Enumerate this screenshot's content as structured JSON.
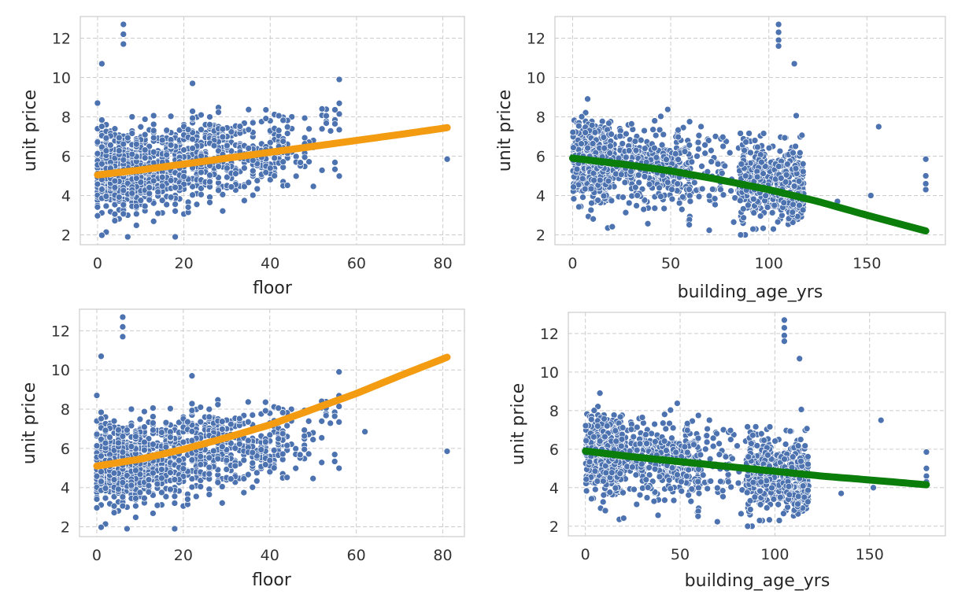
{
  "figure": {
    "layout": "2x2 grid of scatter plots with fitted curves"
  },
  "colors": {
    "points": "#4c72b0",
    "orange_fit": "#f39c12",
    "green_fit": "#0b7d0b",
    "grid": "#cccccc",
    "frame": "#cccccc"
  },
  "chart_data": [
    {
      "type": "scatter",
      "title": "",
      "xlabel": "floor",
      "ylabel": "unit price",
      "xlim": [
        -4,
        85
      ],
      "ylim": [
        1.5,
        13.1
      ],
      "xticks": [
        0,
        20,
        40,
        60,
        80
      ],
      "xtick_labels": [
        "0",
        "20",
        "40",
        "60",
        "80"
      ],
      "yticks": [
        2,
        4,
        6,
        8,
        10,
        12
      ],
      "ytick_labels": [
        "2",
        "4",
        "6",
        "8",
        "10",
        "12"
      ],
      "grid": true,
      "fit_color": "#f39c12",
      "fit": {
        "kind": "exponential",
        "x": [
          0,
          10,
          20,
          30,
          40,
          50,
          60,
          70,
          81
        ],
        "y": [
          5.05,
          5.3,
          5.6,
          5.9,
          6.2,
          6.5,
          6.8,
          7.1,
          7.45
        ]
      },
      "points_note": "~1500 points, dense cluster at floor 0-40, price 3-8"
    },
    {
      "type": "scatter",
      "title": "",
      "xlabel": "building_age_yrs",
      "ylabel": "unit price",
      "xlim": [
        -9,
        190
      ],
      "ylim": [
        1.5,
        13.1
      ],
      "xticks": [
        0,
        50,
        100,
        150
      ],
      "xtick_labels": [
        "0",
        "50",
        "100",
        "150"
      ],
      "yticks": [
        2,
        4,
        6,
        8,
        10,
        12
      ],
      "ytick_labels": [
        "2",
        "4",
        "6",
        "8",
        "10",
        "12"
      ],
      "grid": true,
      "fit_color": "#0b7d0b",
      "fit": {
        "kind": "curve",
        "x": [
          0,
          25,
          50,
          75,
          100,
          125,
          150,
          180
        ],
        "y": [
          5.9,
          5.6,
          5.25,
          4.8,
          4.3,
          3.7,
          3.0,
          2.2
        ]
      },
      "points_note": "clusters at age 0-20, 20-60, 80-120, sparse beyond"
    },
    {
      "type": "scatter",
      "title": "",
      "xlabel": "floor",
      "ylabel": "unit price",
      "xlim": [
        -4,
        85
      ],
      "ylim": [
        1.5,
        13.1
      ],
      "xticks": [
        0,
        20,
        40,
        60,
        80
      ],
      "xtick_labels": [
        "0",
        "20",
        "40",
        "60",
        "80"
      ],
      "yticks": [
        2,
        4,
        6,
        8,
        10,
        12
      ],
      "ytick_labels": [
        "2",
        "4",
        "6",
        "8",
        "10",
        "12"
      ],
      "grid": true,
      "fit_color": "#f39c12",
      "fit": {
        "kind": "exponential",
        "x": [
          0,
          10,
          20,
          30,
          40,
          50,
          60,
          70,
          81
        ],
        "y": [
          5.1,
          5.45,
          5.95,
          6.55,
          7.2,
          8.0,
          8.8,
          9.7,
          10.65
        ]
      },
      "points_note": "same data as top-left"
    },
    {
      "type": "scatter",
      "title": "",
      "xlabel": "building_age_yrs",
      "ylabel": "unit price",
      "xlim": [
        -9,
        190
      ],
      "ylim": [
        1.5,
        13.1
      ],
      "xticks": [
        0,
        50,
        100,
        150
      ],
      "xtick_labels": [
        "0",
        "50",
        "100",
        "150"
      ],
      "yticks": [
        2,
        4,
        6,
        8,
        10,
        12
      ],
      "ytick_labels": [
        "2",
        "4",
        "6",
        "8",
        "10",
        "12"
      ],
      "grid": true,
      "fit_color": "#0b7d0b",
      "fit": {
        "kind": "exponential",
        "x": [
          0,
          25,
          50,
          75,
          100,
          125,
          150,
          180
        ],
        "y": [
          5.9,
          5.6,
          5.35,
          5.1,
          4.85,
          4.6,
          4.4,
          4.15
        ]
      },
      "points_note": "same data as top-right"
    }
  ]
}
